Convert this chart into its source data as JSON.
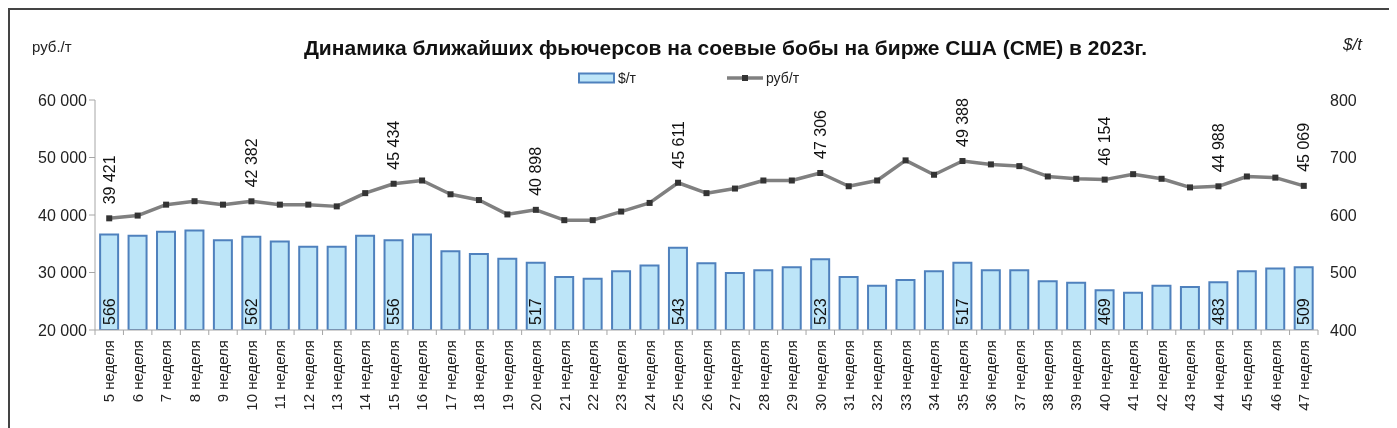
{
  "chart_data": {
    "type": "bar",
    "title": "Динамика ближайших фьючерсов на соевые бобы на бирже США (CME) в 2023г.",
    "ylabel": "руб./т",
    "y2label": "$/t",
    "categories": [
      "5 неделя",
      "6 неделя",
      "7 неделя",
      "8 неделя",
      "9 неделя",
      "10 неделя",
      "11 неделя",
      "12 неделя",
      "13 неделя",
      "14 неделя",
      "15 неделя",
      "16 неделя",
      "17 неделя",
      "18 неделя",
      "19 неделя",
      "20 неделя",
      "21 неделя",
      "22 неделя",
      "23 неделя",
      "24 неделя",
      "25 неделя",
      "26 неделя",
      "27 неделя",
      "28 неделя",
      "29 неделя",
      "30 неделя",
      "31 неделя",
      "32 неделя",
      "33 неделя",
      "34 неделя",
      "35 неделя",
      "36 неделя",
      "37 неделя",
      "38 неделя",
      "39 неделя",
      "40 неделя",
      "41 неделя",
      "42 неделя",
      "43 неделя",
      "44 неделя",
      "45 неделя",
      "46 неделя",
      "47 неделя"
    ],
    "series": [
      {
        "name": "$/т",
        "axis": "y2",
        "color": "#bde5f8",
        "values": [
          566,
          564,
          571,
          573,
          556,
          562,
          554,
          545,
          545,
          564,
          556,
          566,
          537,
          532,
          524,
          517,
          492,
          489,
          502,
          512,
          543,
          516,
          499,
          504,
          509,
          523,
          492,
          477,
          487,
          502,
          517,
          504,
          504,
          485,
          482,
          469,
          465,
          477,
          475,
          483,
          502,
          507,
          509
        ],
        "value_labels": [
          "566",
          null,
          null,
          null,
          null,
          "562",
          null,
          null,
          null,
          null,
          "556",
          null,
          null,
          null,
          null,
          "517",
          null,
          null,
          null,
          null,
          "543",
          null,
          null,
          null,
          null,
          "523",
          null,
          null,
          null,
          null,
          "517",
          null,
          null,
          null,
          null,
          "469",
          null,
          null,
          null,
          "483",
          null,
          null,
          "509"
        ]
      },
      {
        "name": "руб/т",
        "type": "line",
        "color": "#808080",
        "values": [
          39421,
          39900,
          41800,
          42400,
          41800,
          42382,
          41800,
          41800,
          41500,
          43800,
          45434,
          46000,
          43600,
          42600,
          40100,
          40898,
          39100,
          39100,
          40600,
          42100,
          45611,
          43800,
          44600,
          46000,
          46000,
          47306,
          45000,
          46000,
          49500,
          47000,
          49388,
          48800,
          48500,
          46700,
          46300,
          46154,
          47100,
          46300,
          44800,
          44988,
          46700,
          46500,
          45069
        ],
        "value_labels": [
          "39 421",
          null,
          null,
          null,
          null,
          "42 382",
          null,
          null,
          null,
          null,
          "45 434",
          null,
          null,
          null,
          null,
          "40 898",
          null,
          null,
          null,
          null,
          "45 611",
          null,
          null,
          null,
          null,
          "47 306",
          null,
          null,
          null,
          null,
          "49 388",
          null,
          null,
          null,
          null,
          "46 154",
          null,
          null,
          null,
          "44 988",
          null,
          null,
          "45 069"
        ]
      }
    ],
    "ylim": [
      20000,
      60000
    ],
    "yticks": [
      {
        "value": 20000,
        "label": "20 000"
      },
      {
        "value": 30000,
        "label": "30 000"
      },
      {
        "value": 40000,
        "label": "40 000"
      },
      {
        "value": 50000,
        "label": "50 000"
      },
      {
        "value": 60000,
        "label": "60 000"
      }
    ],
    "y2lim": [
      400,
      800
    ],
    "y2ticks": [
      400,
      500,
      600,
      700,
      800
    ],
    "legend": "top",
    "marker": "square"
  }
}
